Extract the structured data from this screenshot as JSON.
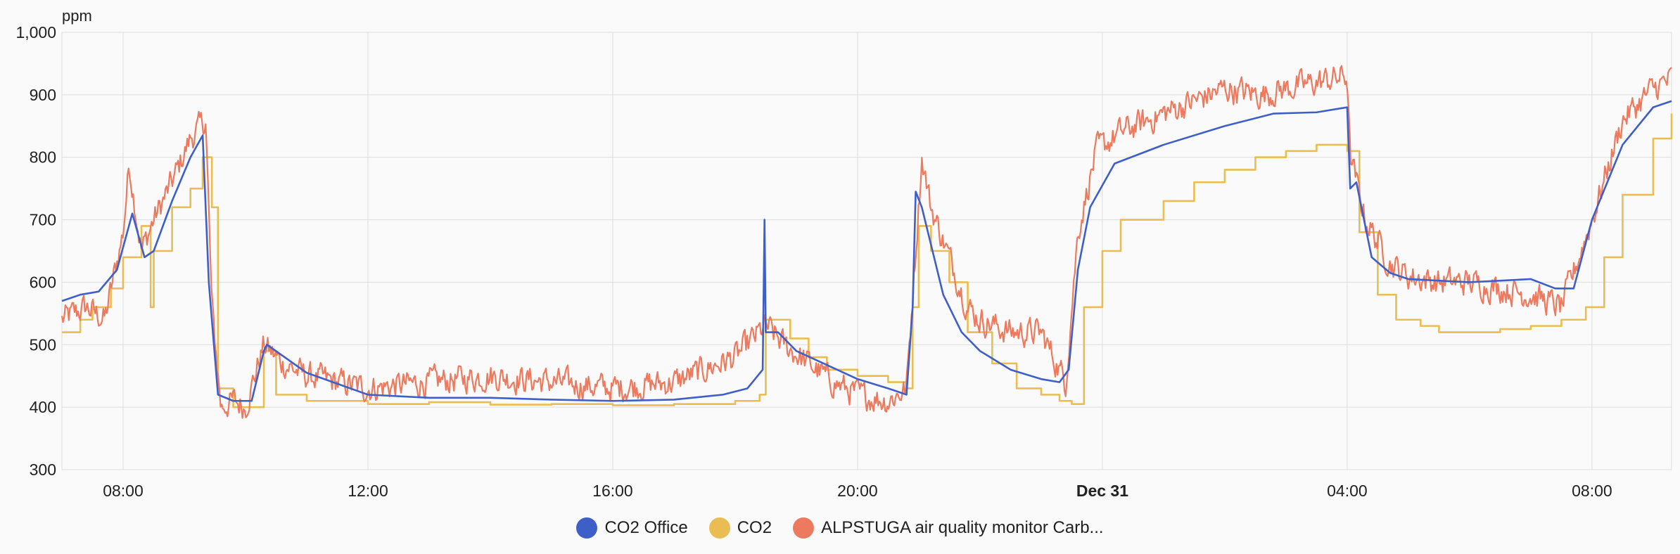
{
  "chart_data": {
    "type": "line",
    "ylabel": "ppm",
    "ylim": [
      300,
      1000
    ],
    "y_ticks": [
      "300",
      "400",
      "500",
      "600",
      "700",
      "800",
      "900",
      "1,000"
    ],
    "y_tick_values": [
      300,
      400,
      500,
      600,
      700,
      800,
      900,
      1000
    ],
    "xlim": [
      "Dec 30 07:00",
      "Dec 31 09:20"
    ],
    "x_ticks": [
      "08:00",
      "12:00",
      "16:00",
      "20:00",
      "Dec 31",
      "04:00",
      "08:00"
    ],
    "x_tick_hours": [
      8,
      12,
      16,
      20,
      24,
      28,
      32
    ],
    "x_hours_range": [
      7,
      33.3
    ],
    "grid": true,
    "legend_position": "bottom-center",
    "series": [
      {
        "name": "CO2 Office",
        "color": "#3f5fc8",
        "shape": "smooth",
        "x_hours": [
          7.0,
          7.3,
          7.6,
          7.9,
          8.15,
          8.35,
          8.5,
          8.8,
          9.1,
          9.3,
          9.4,
          9.55,
          9.8,
          10.1,
          10.3,
          10.35,
          11.0,
          12.0,
          13.0,
          14.0,
          15.0,
          16.0,
          17.0,
          17.8,
          18.2,
          18.45,
          18.48,
          18.5,
          18.7,
          19.0,
          20.0,
          20.5,
          20.8,
          20.9,
          20.95,
          21.05,
          21.2,
          21.4,
          21.7,
          22.0,
          22.5,
          23.0,
          23.3,
          23.45,
          23.6,
          23.8,
          24.2,
          25.0,
          26.0,
          26.8,
          27.5,
          28.0,
          28.05,
          28.15,
          28.4,
          28.7,
          29.0,
          30.0,
          31.0,
          31.4,
          31.7,
          32.0,
          32.5,
          33.0,
          33.3
        ],
        "values": [
          570,
          580,
          585,
          620,
          710,
          640,
          650,
          730,
          800,
          835,
          600,
          420,
          410,
          410,
          490,
          500,
          455,
          420,
          415,
          415,
          412,
          410,
          412,
          420,
          430,
          460,
          700,
          520,
          520,
          490,
          445,
          430,
          420,
          560,
          745,
          720,
          660,
          580,
          520,
          490,
          460,
          445,
          440,
          460,
          620,
          720,
          790,
          820,
          850,
          870,
          872,
          880,
          750,
          760,
          640,
          615,
          605,
          600,
          605,
          590,
          590,
          700,
          820,
          880,
          890
        ]
      },
      {
        "name": "CO2",
        "color": "#e9bd52",
        "shape": "step",
        "x_hours": [
          7.0,
          7.3,
          7.5,
          7.8,
          8.0,
          8.3,
          8.45,
          8.5,
          8.8,
          9.1,
          9.3,
          9.45,
          9.55,
          9.8,
          10.3,
          10.5,
          11.0,
          12.0,
          13.0,
          14.0,
          15.0,
          16.0,
          17.0,
          18.0,
          18.4,
          18.5,
          18.9,
          19.2,
          19.5,
          20.0,
          20.5,
          20.8,
          20.9,
          21.0,
          21.2,
          21.5,
          21.8,
          22.2,
          22.6,
          23.0,
          23.3,
          23.5,
          23.7,
          24.0,
          24.3,
          25.0,
          25.5,
          26.0,
          26.5,
          27.0,
          27.5,
          28.0,
          28.2,
          28.5,
          28.8,
          29.2,
          29.5,
          30.0,
          30.5,
          31.0,
          31.5,
          31.9,
          32.2,
          32.5,
          33.0,
          33.3
        ],
        "values": [
          520,
          540,
          560,
          590,
          640,
          690,
          560,
          650,
          720,
          750,
          800,
          720,
          430,
          400,
          490,
          420,
          410,
          405,
          408,
          404,
          405,
          403,
          405,
          410,
          420,
          540,
          510,
          480,
          460,
          450,
          440,
          430,
          560,
          690,
          650,
          600,
          520,
          470,
          430,
          420,
          410,
          405,
          560,
          650,
          700,
          730,
          760,
          780,
          800,
          810,
          820,
          810,
          680,
          580,
          540,
          530,
          520,
          520,
          525,
          530,
          540,
          560,
          640,
          740,
          830,
          870
        ]
      },
      {
        "name": "ALPSTUGA air quality monitor Carb...",
        "color": "#ec7a5e",
        "shape": "noisy",
        "noise": 24,
        "x_hours": [
          7.0,
          7.4,
          7.7,
          8.0,
          8.1,
          8.3,
          8.5,
          8.8,
          9.1,
          9.35,
          9.45,
          9.6,
          9.8,
          10.0,
          10.3,
          10.6,
          11.0,
          12.0,
          13.0,
          14.0,
          15.0,
          16.0,
          17.0,
          18.0,
          18.5,
          18.8,
          19.2,
          19.6,
          20.0,
          20.5,
          20.8,
          21.05,
          21.2,
          21.5,
          21.8,
          22.0,
          22.5,
          23.0,
          23.4,
          23.6,
          23.9,
          24.3,
          25.0,
          25.5,
          26.0,
          26.6,
          27.0,
          27.5,
          28.0,
          28.05,
          28.3,
          28.7,
          29.0,
          29.5,
          30.0,
          30.5,
          31.0,
          31.5,
          32.0,
          32.5,
          33.0,
          33.3
        ],
        "values": [
          540,
          560,
          540,
          680,
          790,
          650,
          700,
          760,
          830,
          860,
          560,
          400,
          410,
          400,
          500,
          470,
          450,
          430,
          440,
          450,
          440,
          430,
          440,
          480,
          530,
          500,
          470,
          440,
          420,
          410,
          430,
          800,
          720,
          640,
          560,
          540,
          520,
          520,
          440,
          680,
          810,
          840,
          870,
          890,
          910,
          900,
          910,
          920,
          930,
          800,
          700,
          630,
          610,
          600,
          600,
          590,
          580,
          560,
          700,
          860,
          910,
          925
        ]
      }
    ]
  }
}
